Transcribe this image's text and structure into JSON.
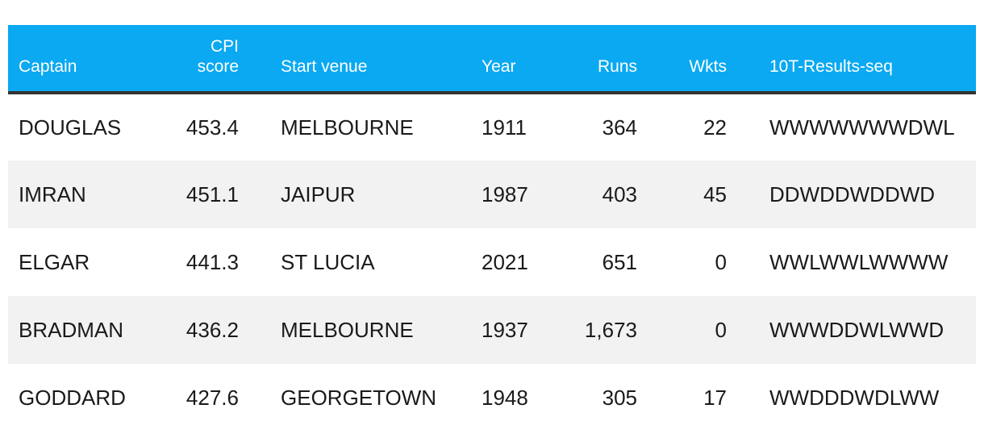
{
  "table": {
    "headers": {
      "captain": "Captain",
      "cpi_line1": "CPI",
      "cpi_line2": "score",
      "venue": "Start venue",
      "year": "Year",
      "runs": "Runs",
      "wkts": "Wkts",
      "seq": "10T-Results-seq"
    },
    "rows": [
      {
        "captain": "DOUGLAS",
        "cpi": "453.4",
        "venue": "MELBOURNE",
        "year": "1911",
        "runs": "364",
        "wkts": "22",
        "seq": "WWWWWWWDWL"
      },
      {
        "captain": "IMRAN",
        "cpi": "451.1",
        "venue": "JAIPUR",
        "year": "1987",
        "runs": "403",
        "wkts": "45",
        "seq": "DDWDDWDDWD"
      },
      {
        "captain": "ELGAR",
        "cpi": "441.3",
        "venue": "ST LUCIA",
        "year": "2021",
        "runs": "651",
        "wkts": "0",
        "seq": "WWLWWLWWWW"
      },
      {
        "captain": "BRADMAN",
        "cpi": "436.2",
        "venue": "MELBOURNE",
        "year": "1937",
        "runs": "1,673",
        "wkts": "0",
        "seq": "WWWDDWLWWD"
      },
      {
        "captain": "GODDARD",
        "cpi": "427.6",
        "venue": "GEORGETOWN",
        "year": "1948",
        "runs": "305",
        "wkts": "17",
        "seq": "WWDDDWDLWW"
      }
    ]
  },
  "colors": {
    "header_bg": "#0aa9f1",
    "header_rule": "#333333",
    "stripe": "#f2f2f2"
  }
}
